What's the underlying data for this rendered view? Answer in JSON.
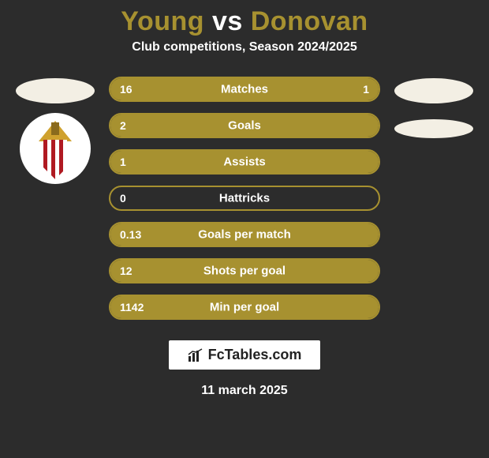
{
  "colors": {
    "background": "#2c2c2c",
    "accent": "#a79130",
    "white": "#ffffff",
    "avatar_ellipse": "#f3efe4",
    "crest_red": "#b01a22",
    "crest_gold": "#cfa12e"
  },
  "title": {
    "full": "Young vs Donovan",
    "left_name": "Young",
    "right_name": "Donovan",
    "fontsize": 34,
    "color_left": "#a79130",
    "color_vs": "#ffffff",
    "color_right": "#a79130"
  },
  "subtitle": {
    "text": "Club competitions, Season 2024/2025",
    "color": "#ffffff",
    "fontsize": 16
  },
  "left_player": {
    "avatar_shape": "ellipse",
    "avatar_color": "#f3efe4",
    "club_crest": {
      "bg": "#ffffff",
      "stripes": [
        "#b01a22",
        "#ffffff"
      ],
      "top_color": "#cfa12e"
    }
  },
  "right_player": {
    "avatar_shape": "ellipse",
    "avatar_color": "#f3efe4",
    "secondary_ellipse_color": "#f3efe4"
  },
  "bars": {
    "style": {
      "height": 32,
      "border_radius": 16,
      "border_width": 2,
      "border_color": "#a79130",
      "fill_color": "#a79130",
      "label_color": "#ffffff",
      "value_color": "#ffffff",
      "label_fontsize": 15,
      "value_fontsize": 14,
      "track_bg": "transparent"
    },
    "rows": [
      {
        "label": "Matches",
        "left": "16",
        "right": "1",
        "left_pct": 85,
        "right_pct": 15,
        "show_right_segment": true
      },
      {
        "label": "Goals",
        "left": "2",
        "right": "",
        "left_pct": 100,
        "right_pct": 0,
        "show_right_segment": false
      },
      {
        "label": "Assists",
        "left": "1",
        "right": "",
        "left_pct": 100,
        "right_pct": 0,
        "show_right_segment": false
      },
      {
        "label": "Hattricks",
        "left": "0",
        "right": "",
        "left_pct": 0,
        "right_pct": 0,
        "show_right_segment": false
      },
      {
        "label": "Goals per match",
        "left": "0.13",
        "right": "",
        "left_pct": 100,
        "right_pct": 0,
        "show_right_segment": false
      },
      {
        "label": "Shots per goal",
        "left": "12",
        "right": "",
        "left_pct": 100,
        "right_pct": 0,
        "show_right_segment": false
      },
      {
        "label": "Min per goal",
        "left": "1142",
        "right": "",
        "left_pct": 100,
        "right_pct": 0,
        "show_right_segment": false
      }
    ]
  },
  "brand": {
    "text": "FcTables.com",
    "icon": "chart-icon",
    "bg": "#ffffff",
    "text_color": "#222222",
    "fontsize": 18
  },
  "date": {
    "text": "11 march 2025",
    "color": "#ffffff",
    "fontsize": 16
  }
}
